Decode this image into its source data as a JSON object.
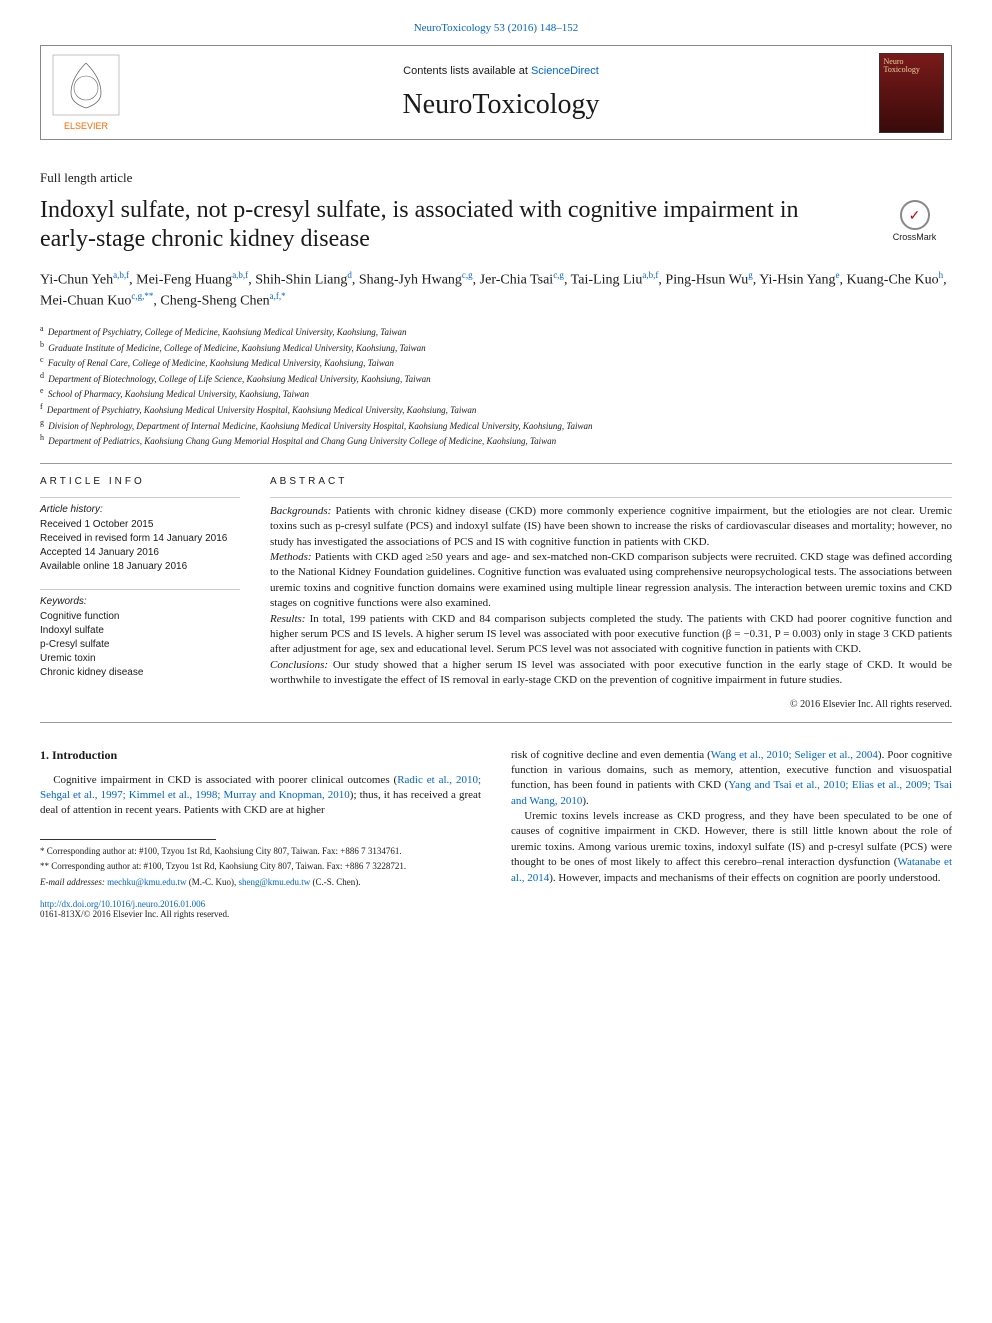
{
  "top_link": {
    "journal": "NeuroToxicology",
    "citation": "53 (2016) 148–152"
  },
  "header": {
    "contents_text": "Contents lists available at ",
    "contents_link": "ScienceDirect",
    "journal_name": "NeuroToxicology",
    "cover_line1": "Neuro",
    "cover_line2": "Toxicology",
    "elsevier_label": "ELSEVIER"
  },
  "article_type": "Full length article",
  "title": "Indoxyl sulfate, not p-cresyl sulfate, is associated with cognitive impairment in early-stage chronic kidney disease",
  "crossmark_label": "CrossMark",
  "authors_html": "Yi-Chun Yeh<sup>a,b,f</sup>, Mei-Feng Huang<sup>a,b,f</sup>, Shih-Shin Liang<sup>d</sup>, Shang-Jyh Hwang<sup>c,g</sup>, Jer-Chia Tsai<sup>c,g</sup>, Tai-Ling Liu<sup>a,b,f</sup>, Ping-Hsun Wu<sup>g</sup>, Yi-Hsin Yang<sup>e</sup>, Kuang-Che Kuo<sup>h</sup>, Mei-Chuan Kuo<sup>c,g,**</sup>, Cheng-Sheng Chen<sup>a,f,*</sup>",
  "affiliations": [
    {
      "key": "a",
      "text": "Department of Psychiatry, College of Medicine, Kaohsiung Medical University, Kaohsiung, Taiwan"
    },
    {
      "key": "b",
      "text": "Graduate Institute of Medicine, College of Medicine, Kaohsiung Medical University, Kaohsiung, Taiwan"
    },
    {
      "key": "c",
      "text": "Faculty of Renal Care, College of Medicine, Kaohsiung Medical University, Kaohsiung, Taiwan"
    },
    {
      "key": "d",
      "text": "Department of Biotechnology, College of Life Science, Kaohsiung Medical University, Kaohsiung, Taiwan"
    },
    {
      "key": "e",
      "text": "School of Pharmacy, Kaohsiung Medical University, Kaohsiung, Taiwan"
    },
    {
      "key": "f",
      "text": "Department of Psychiatry, Kaohsiung Medical University Hospital, Kaohsiung Medical University, Kaohsiung, Taiwan"
    },
    {
      "key": "g",
      "text": "Division of Nephrology, Department of Internal Medicine, Kaohsiung Medical University Hospital, Kaohsiung Medical University, Kaohsiung, Taiwan"
    },
    {
      "key": "h",
      "text": "Department of Pediatrics, Kaohsiung Chang Gung Memorial Hospital and Chang Gung University College of Medicine, Kaohsiung, Taiwan"
    }
  ],
  "article_info": {
    "label": "ARTICLE INFO",
    "history_heading": "Article history:",
    "history": [
      "Received 1 October 2015",
      "Received in revised form 14 January 2016",
      "Accepted 14 January 2016",
      "Available online 18 January 2016"
    ],
    "keywords_heading": "Keywords:",
    "keywords": [
      "Cognitive function",
      "Indoxyl sulfate",
      "p-Cresyl sulfate",
      "Uremic toxin",
      "Chronic kidney disease"
    ]
  },
  "abstract": {
    "label": "ABSTRACT",
    "segments": [
      {
        "label": "Backgrounds:",
        "text": "Patients with chronic kidney disease (CKD) more commonly experience cognitive impairment, but the etiologies are not clear. Uremic toxins such as p-cresyl sulfate (PCS) and indoxyl sulfate (IS) have been shown to increase the risks of cardiovascular diseases and mortality; however, no study has investigated the associations of PCS and IS with cognitive function in patients with CKD."
      },
      {
        "label": "Methods:",
        "text": "Patients with CKD aged ≥50 years and age- and sex-matched non-CKD comparison subjects were recruited. CKD stage was defined according to the National Kidney Foundation guidelines. Cognitive function was evaluated using comprehensive neuropsychological tests. The associations between uremic toxins and cognitive function domains were examined using multiple linear regression analysis. The interaction between uremic toxins and CKD stages on cognitive functions were also examined."
      },
      {
        "label": "Results:",
        "text": "In total, 199 patients with CKD and 84 comparison subjects completed the study. The patients with CKD had poorer cognitive function and higher serum PCS and IS levels. A higher serum IS level was associated with poor executive function (β = −0.31, P = 0.003) only in stage 3 CKD patients after adjustment for age, sex and educational level. Serum PCS level was not associated with cognitive function in patients with CKD."
      },
      {
        "label": "Conclusions:",
        "text": "Our study showed that a higher serum IS level was associated with poor executive function in the early stage of CKD. It would be worthwhile to investigate the effect of IS removal in early-stage CKD on the prevention of cognitive impairment in future studies."
      }
    ],
    "copyright": "© 2016 Elsevier Inc. All rights reserved."
  },
  "intro": {
    "heading": "1. Introduction",
    "left_p1a": "Cognitive impairment in CKD is associated with poorer clinical outcomes (",
    "left_p1_link": "Radic et al., 2010; Sehgal et al., 1997; Kimmel et al., 1998; Murray and Knopman, 2010",
    "left_p1b": "); thus, it has received a great deal of attention in recent years. Patients with CKD are at higher",
    "right_p1a": "risk of cognitive decline and even dementia (",
    "right_p1_link1": "Wang et al., 2010; Seliger et al., 2004",
    "right_p1b": "). Poor cognitive function in various domains, such as memory, attention, executive function and visuospatial function, has been found in patients with CKD (",
    "right_p1_link2": "Yang and Tsai et al., 2010; Elias et al., 2009; Tsai and Wang, 2010",
    "right_p1c": ").",
    "right_p2a": "Uremic toxins levels increase as CKD progress, and they have been speculated to be one of causes of cognitive impairment in CKD. However, there is still little known about the role of uremic toxins. Among various uremic toxins, indoxyl sulfate (IS) and p-cresyl sulfate (PCS) were thought to be ones of most likely to affect this cerebro–renal interaction dysfunction (",
    "right_p2_link": "Watanabe et al., 2014",
    "right_p2b": "). However, impacts and mechanisms of their effects on cognition are poorly understood."
  },
  "footnotes": {
    "c1_a": "* Corresponding author at: #100, Tzyou 1st Rd, Kaohsiung City 807, Taiwan. Fax: +886 7 3134761.",
    "c2_a": "** Corresponding author at: #100, Tzyou 1st Rd, Kaohsiung City 807, Taiwan. Fax: +886 7 3228721.",
    "email_label": "E-mail addresses: ",
    "email1": "mechku@kmu.edu.tw",
    "email1_name": " (M.-C. Kuo), ",
    "email2": "sheng@kmu.edu.tw",
    "email2_name": " (C.-S. Chen)."
  },
  "doi": {
    "url": "http://dx.doi.org/10.1016/j.neuro.2016.01.006",
    "issn": "0161-813X/© 2016 Elsevier Inc. All rights reserved."
  },
  "colors": {
    "link": "#0066cc",
    "text": "#1a1a1a",
    "border": "#888888",
    "cover_bg_top": "#7a1a1a",
    "cover_bg_bottom": "#3a0a0a",
    "cover_text": "#e8d4a0"
  }
}
